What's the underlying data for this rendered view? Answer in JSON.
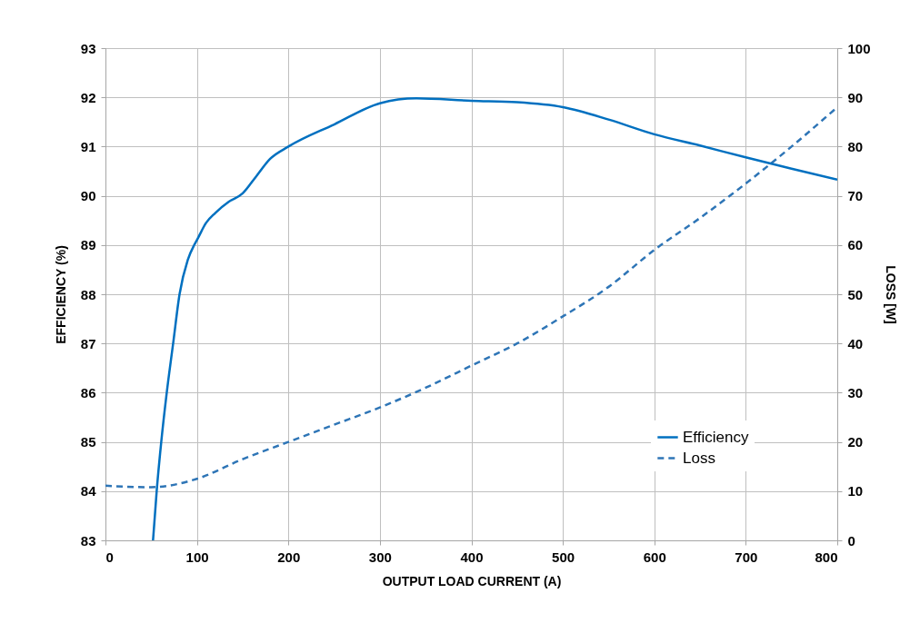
{
  "chart_data": {
    "type": "line",
    "xlabel": "OUTPUT LOAD CURRENT  (A)",
    "ylabel": "EFFICIENCY (%)",
    "y2label": "LOSS [W]",
    "xlim": [
      0,
      800
    ],
    "xticks": [
      0,
      100,
      200,
      300,
      400,
      500,
      600,
      700,
      800
    ],
    "ylim": [
      83,
      93
    ],
    "yticks": [
      83,
      84,
      85,
      86,
      87,
      88,
      89,
      90,
      91,
      92,
      93
    ],
    "y2lim": [
      0,
      100
    ],
    "y2ticks": [
      0,
      10,
      20,
      30,
      40,
      50,
      60,
      70,
      80,
      90,
      100
    ],
    "grid": true,
    "legend": "bottom right",
    "series": [
      {
        "name": "Efficiency",
        "color": "#0070c0",
        "line_style": "solid",
        "x": [
          52,
          56,
          61,
          67,
          74,
          81,
          90,
          97,
          100,
          110,
          120,
          135,
          150,
          165,
          180,
          200,
          250,
          300,
          340,
          400,
          450,
          500,
          550,
          600,
          650,
          700,
          750,
          800
        ],
        "values": [
          83,
          84,
          85,
          86,
          87,
          88,
          88.7,
          89,
          89.1,
          89.45,
          89.65,
          89.88,
          90.05,
          90.4,
          90.75,
          91.0,
          91.45,
          91.88,
          91.98,
          91.93,
          91.9,
          91.8,
          91.55,
          91.25,
          91.02,
          90.78,
          90.55,
          90.33
        ]
      },
      {
        "name": "Loss",
        "color": "#2e75b6",
        "line_style": "dashed",
        "axis": "y2",
        "x": [
          0,
          50,
          100,
          150,
          200,
          250,
          300,
          350,
          400,
          450,
          500,
          550,
          600,
          650,
          700,
          750,
          800
        ],
        "values": [
          11.1,
          10.8,
          12.5,
          16.5,
          20,
          23.5,
          27,
          31,
          35.5,
          40,
          45.5,
          51.5,
          59,
          65.5,
          72.5,
          80,
          88
        ]
      }
    ]
  }
}
